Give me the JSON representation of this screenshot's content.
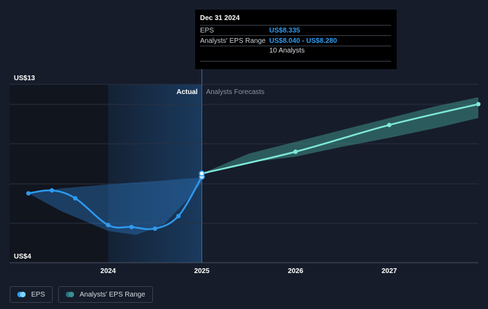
{
  "tooltip": {
    "date": "Dec 31 2024",
    "rows": [
      {
        "label": "EPS",
        "value": "US$8.335"
      },
      {
        "label": "Analysts' EPS Range",
        "value": "US$8.040 - US$8.280"
      }
    ],
    "analysts": "10 Analysts"
  },
  "legend": [
    {
      "label": "EPS",
      "color": "#2e9bf0",
      "color2": "#7fd3f7"
    },
    {
      "label": "Analysts' EPS Range",
      "color": "#2a6f86",
      "color2": "#3b8f8f"
    }
  ],
  "chart_data": {
    "type": "line",
    "section_labels": {
      "actual": "Actual",
      "forecast": "Analysts Forecasts"
    },
    "y_tick_labels": {
      "top": "US$13",
      "bottom": "US$4"
    },
    "ylim": [
      4,
      13
    ],
    "x_ticks": [
      {
        "label": "2024",
        "x": 2024.0
      },
      {
        "label": "2025",
        "x": 2025.0
      },
      {
        "label": "2026",
        "x": 2026.0
      },
      {
        "label": "2027",
        "x": 2027.0
      }
    ],
    "xlim": [
      2022.95,
      2027.95
    ],
    "actual_eps": [
      {
        "x": 2023.15,
        "y": 7.5
      },
      {
        "x": 2023.4,
        "y": 7.65
      },
      {
        "x": 2023.65,
        "y": 7.25
      },
      {
        "x": 2024.0,
        "y": 5.9
      },
      {
        "x": 2024.25,
        "y": 5.8
      },
      {
        "x": 2024.5,
        "y": 5.72
      },
      {
        "x": 2024.75,
        "y": 6.35
      },
      {
        "x": 2025.0,
        "y": 8.335
      }
    ],
    "actual_range": {
      "x": [
        2023.15,
        2023.5,
        2024.0,
        2024.3,
        2024.6,
        2024.85,
        2025.0
      ],
      "upper": [
        7.5,
        7.75,
        7.95,
        8.05,
        8.15,
        8.25,
        8.28
      ],
      "lower": [
        7.5,
        6.6,
        5.6,
        5.4,
        5.95,
        7.2,
        8.04
      ]
    },
    "forecast_eps": [
      {
        "x": 2025.0,
        "y": 8.5
      },
      {
        "x": 2026.0,
        "y": 9.6
      },
      {
        "x": 2027.0,
        "y": 10.95
      },
      {
        "x": 2027.95,
        "y": 12.0
      }
    ],
    "forecast_range": {
      "x": [
        2025.0,
        2025.5,
        2026.0,
        2026.5,
        2027.0,
        2027.5,
        2027.95
      ],
      "upper": [
        8.5,
        9.5,
        10.1,
        10.7,
        11.3,
        11.9,
        12.35
      ],
      "lower": [
        8.5,
        9.05,
        9.35,
        9.85,
        10.3,
        10.8,
        11.3
      ]
    },
    "highlight_x": 2025.0,
    "colors": {
      "actual_line": "#2e9bf0",
      "forecast_line": "#7ee8d8",
      "actual_range_fill": "#2a72b8",
      "forecast_range_fill": "#3f8f88",
      "grid": "#2a3140",
      "past_shade": "#11151e",
      "highlight_band": "#1a3a5e"
    }
  }
}
